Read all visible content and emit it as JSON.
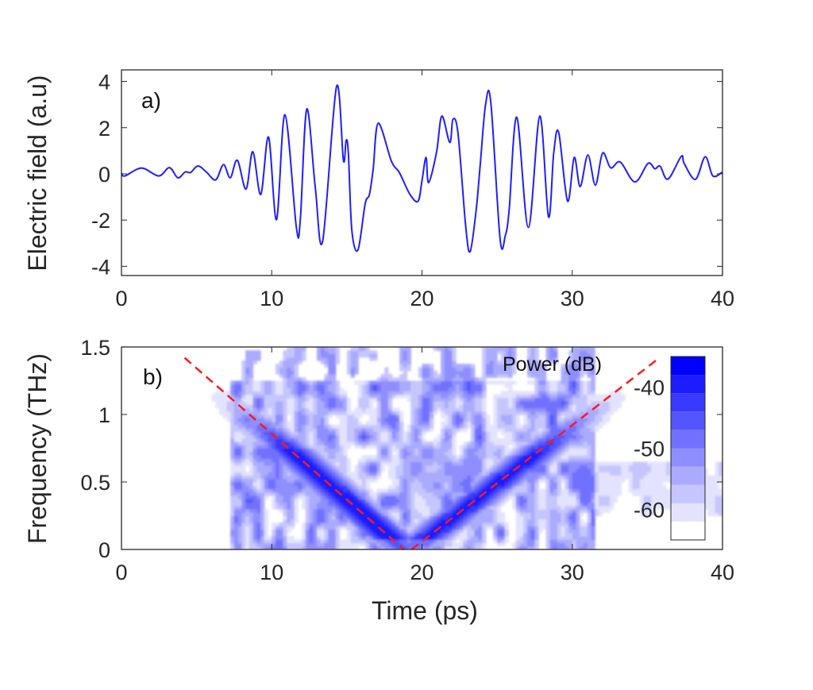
{
  "chart_data": [
    {
      "type": "line",
      "panel_label": "a)",
      "xlabel": "",
      "ylabel": "Electric field (a.u)",
      "xlim": [
        0,
        40
      ],
      "ylim": [
        -4.4,
        4.5
      ],
      "xticks": [
        "0",
        "10",
        "20",
        "30",
        "40"
      ],
      "yticks": [
        "4",
        "2",
        "0",
        "-2",
        "-4"
      ],
      "color": "#1f1fff",
      "series": [
        {
          "name": "Electric field",
          "points": [
            [
              0,
              0.03
            ],
            [
              0.23,
              -0.09
            ],
            [
              1.34,
              0.25
            ],
            [
              2.48,
              -0.09
            ],
            [
              3.19,
              0.27
            ],
            [
              3.75,
              -0.17
            ],
            [
              4.24,
              0.08
            ],
            [
              4.6,
              0.06
            ],
            [
              5.09,
              0.34
            ],
            [
              5.65,
              0.08
            ],
            [
              6.27,
              -0.26
            ],
            [
              6.79,
              0.4
            ],
            [
              7.24,
              -0.17
            ],
            [
              7.71,
              0.59
            ],
            [
              8.29,
              -0.66
            ],
            [
              8.74,
              0.96
            ],
            [
              9.27,
              -0.89
            ],
            [
              9.79,
              1.59
            ],
            [
              10.32,
              -1.98
            ],
            [
              10.88,
              2.56
            ],
            [
              11.64,
              -2.32
            ],
            [
              11.9,
              -2.0
            ],
            [
              12.33,
              2.8
            ],
            [
              12.9,
              -0.6
            ],
            [
              13.39,
              -2.91
            ],
            [
              14.31,
              3.77
            ],
            [
              14.77,
              0.59
            ],
            [
              14.95,
              1.45
            ],
            [
              15.1,
              0.9
            ],
            [
              15.33,
              -2.43
            ],
            [
              15.74,
              -3.29
            ],
            [
              16.22,
              -1.29
            ],
            [
              16.5,
              -0.9
            ],
            [
              16.75,
              0.19
            ],
            [
              17.09,
              2.19
            ],
            [
              17.97,
              0.54
            ],
            [
              18.5,
              0.05
            ],
            [
              19.2,
              -0.89
            ],
            [
              19.74,
              -1.18
            ],
            [
              20.0,
              -0.3
            ],
            [
              20.27,
              0.71
            ],
            [
              20.44,
              -0.38
            ],
            [
              20.97,
              0.94
            ],
            [
              21.32,
              2.5
            ],
            [
              21.85,
              1.36
            ],
            [
              22.06,
              2.36
            ],
            [
              22.4,
              1.74
            ],
            [
              22.9,
              -2.2
            ],
            [
              23.2,
              -3.37
            ],
            [
              23.6,
              -1.6
            ],
            [
              23.88,
              0.42
            ],
            [
              24.23,
              2.99
            ],
            [
              24.58,
              3.1
            ],
            [
              25.2,
              -2.83
            ],
            [
              25.55,
              -2.66
            ],
            [
              25.8,
              -1.57
            ],
            [
              26.31,
              2.45
            ],
            [
              27.08,
              -2.32
            ],
            [
              27.84,
              2.5
            ],
            [
              28.42,
              -1.86
            ],
            [
              28.77,
              0.92
            ],
            [
              29.1,
              1.79
            ],
            [
              29.69,
              -1.18
            ],
            [
              30.13,
              0.71
            ],
            [
              30.53,
              -0.55
            ],
            [
              31.04,
              0.82
            ],
            [
              31.54,
              -0.49
            ],
            [
              32.02,
              0.9
            ],
            [
              32.56,
              0.26
            ],
            [
              33.2,
              0.51
            ],
            [
              34.17,
              -0.35
            ],
            [
              35.04,
              0.45
            ],
            [
              35.5,
              0.22
            ],
            [
              35.85,
              0.33
            ],
            [
              36.37,
              -0.23
            ],
            [
              37.26,
              0.76
            ],
            [
              37.45,
              0.45
            ],
            [
              38.2,
              -0.24
            ],
            [
              38.85,
              0.74
            ],
            [
              39.36,
              -0.09
            ],
            [
              40,
              0.08
            ]
          ]
        }
      ]
    },
    {
      "type": "heatmap",
      "panel_label": "b)",
      "xlabel": "Time (ps)",
      "ylabel": "Frequency (THz)",
      "xlim": [
        0,
        40
      ],
      "ylim": [
        0,
        1.5
      ],
      "xticks": [
        "0",
        "10",
        "20",
        "30",
        "40"
      ],
      "yticks": [
        "1.5",
        "1",
        "0.5",
        "0"
      ],
      "colorbar": {
        "title": "Power (dB)",
        "range": [
          -65,
          -35
        ],
        "levels": 10,
        "ticks": [
          "-40",
          "-50",
          "-60"
        ],
        "low_color": "#ffffff",
        "high_color": "#0000ff"
      },
      "ridges": [
        {
          "name": "left chirp",
          "from": [
            4.2,
            1.42
          ],
          "to": [
            18.8,
            0
          ],
          "color": "#ff1a1a",
          "style": "dashed"
        },
        {
          "name": "right chirp",
          "from": [
            19.3,
            0
          ],
          "to": [
            35.8,
            1.42
          ],
          "color": "#ff1a1a",
          "style": "dashed"
        }
      ]
    }
  ]
}
